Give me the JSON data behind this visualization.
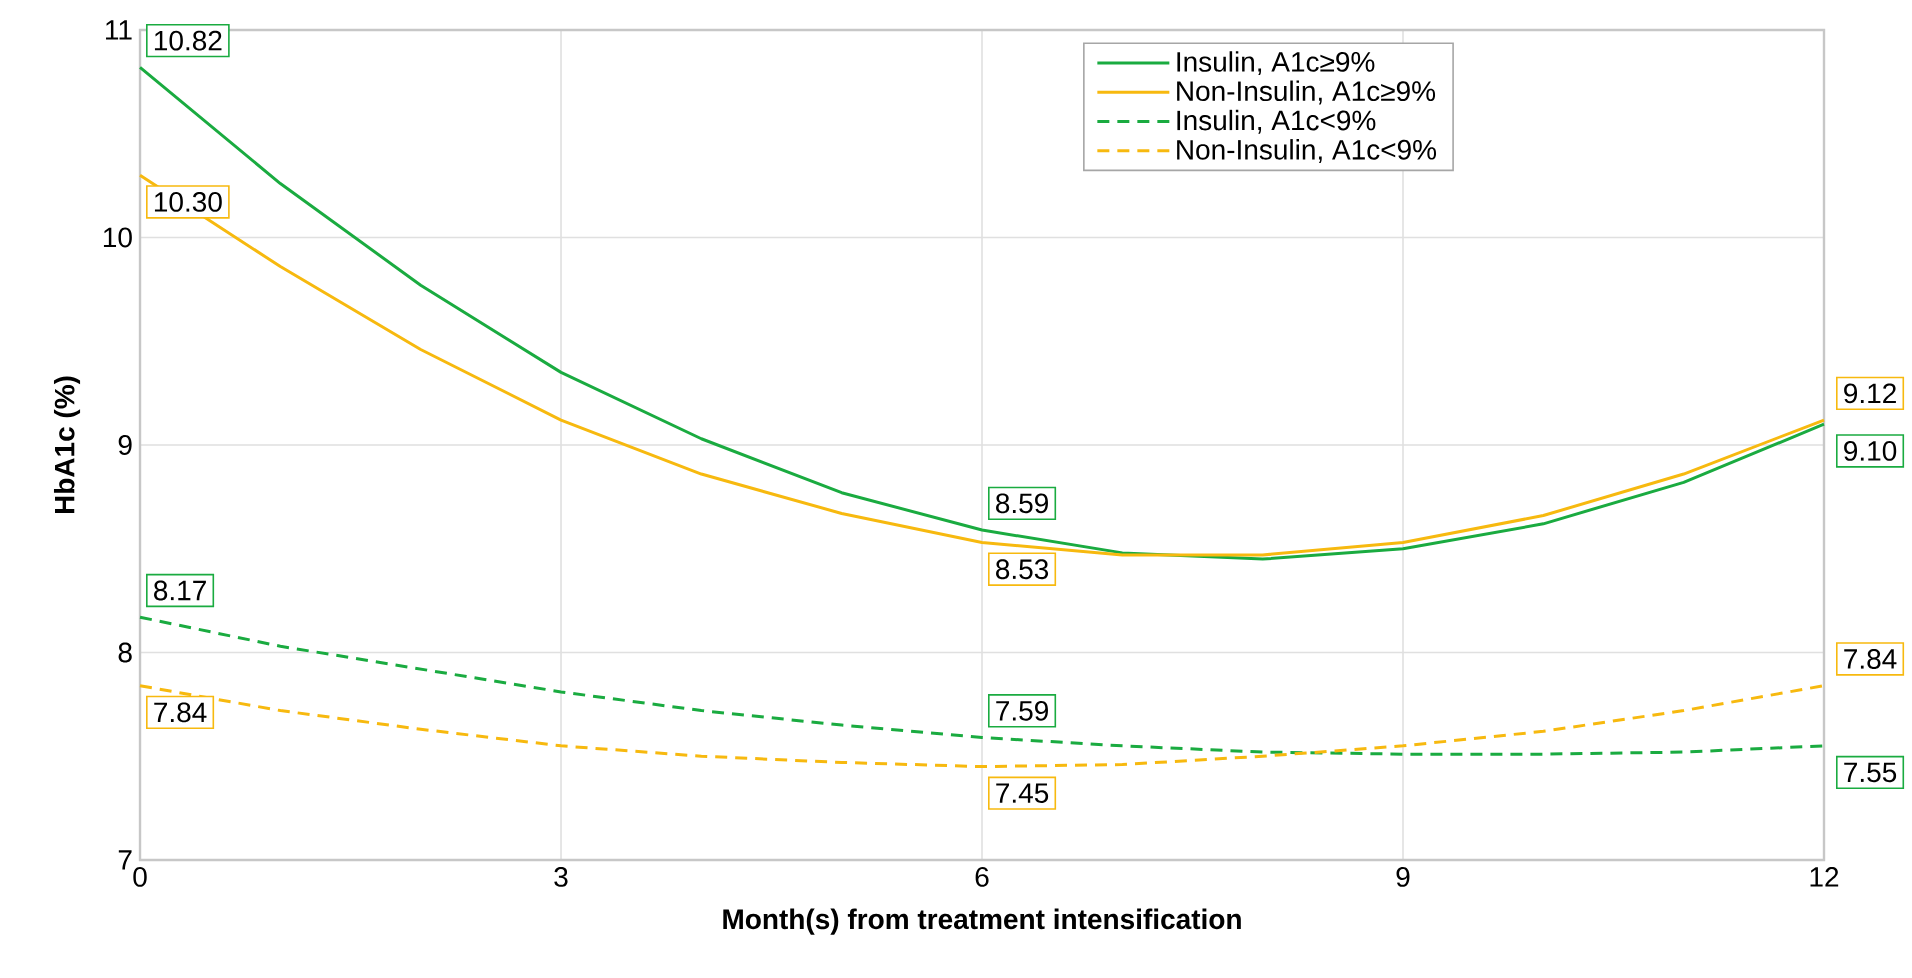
{
  "chart_data": {
    "type": "line",
    "xlabel": "Month(s) from treatment intensification",
    "ylabel": "HbA1c (%)",
    "x": [
      0,
      1,
      2,
      3,
      4,
      5,
      6,
      7,
      8,
      9,
      10,
      11,
      12
    ],
    "xlim": [
      0,
      12
    ],
    "xticks": [
      0,
      3,
      6,
      9,
      12
    ],
    "ylim": [
      7,
      11
    ],
    "yticks": [
      7,
      8,
      9,
      10,
      11
    ],
    "grid": true,
    "legend": "top right",
    "marker": "none",
    "series": [
      {
        "name": "Insulin, A1c≥9%",
        "color": "#1aab40",
        "line_style": "solid",
        "values": [
          10.82,
          10.26,
          9.77,
          9.35,
          9.03,
          8.77,
          8.59,
          8.48,
          8.45,
          8.5,
          8.62,
          8.82,
          9.1
        ],
        "value_labels": [
          "10.82",
          null,
          null,
          null,
          null,
          null,
          "8.59",
          null,
          null,
          null,
          null,
          null,
          "9.10"
        ]
      },
      {
        "name": "Non-Insulin, A1c≥9%",
        "color": "#f7b90f",
        "line_style": "solid",
        "values": [
          10.3,
          9.86,
          9.46,
          9.12,
          8.86,
          8.67,
          8.53,
          8.47,
          8.47,
          8.53,
          8.66,
          8.86,
          9.12
        ],
        "value_labels": [
          "10.30",
          null,
          null,
          null,
          null,
          null,
          "8.53",
          null,
          null,
          null,
          null,
          null,
          "9.12"
        ]
      },
      {
        "name": "Insulin, A1c<9%",
        "color": "#1aab40",
        "line_style": "dashed",
        "values": [
          8.17,
          8.03,
          7.92,
          7.81,
          7.72,
          7.65,
          7.59,
          7.55,
          7.52,
          7.51,
          7.51,
          7.52,
          7.55
        ],
        "value_labels": [
          "8.17",
          null,
          null,
          null,
          null,
          null,
          "7.59",
          null,
          null,
          null,
          null,
          null,
          "7.55"
        ]
      },
      {
        "name": "Non-Insulin, A1c<9%",
        "color": "#f7b90f",
        "line_style": "dashed",
        "values": [
          7.84,
          7.72,
          7.63,
          7.55,
          7.5,
          7.47,
          7.45,
          7.46,
          7.5,
          7.55,
          7.62,
          7.72,
          7.84
        ],
        "value_labels": [
          "7.84",
          null,
          null,
          null,
          null,
          null,
          "7.45",
          null,
          null,
          null,
          null,
          null,
          "7.84"
        ]
      }
    ]
  }
}
